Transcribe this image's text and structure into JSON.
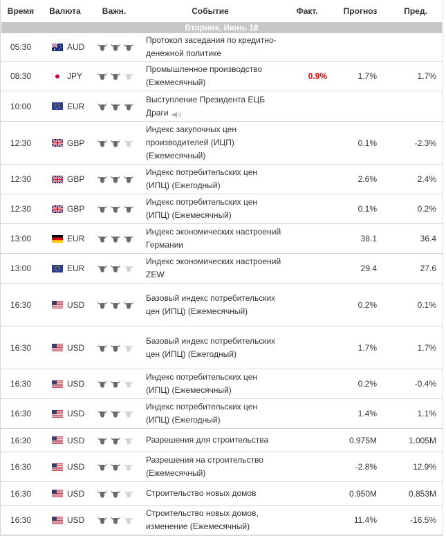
{
  "headers": {
    "time": "Время",
    "currency": "Валюта",
    "importance": "Важн.",
    "event": "Событие",
    "actual": "Факт.",
    "forecast": "Прогноз",
    "previous": "Пред."
  },
  "day_label": "Вторник, Июнь 18",
  "colors": {
    "actual_red": "#e00000",
    "day_bar": "#c8c8c8",
    "bull_dark": "#666666",
    "bull_light": "#d0d0d0"
  },
  "rows": [
    {
      "time": "05:30",
      "currency": "AUD",
      "flag": "flag-au-icon",
      "imp": 3,
      "event": "Протокол заседания по кредитно-денежной политике",
      "actual": "",
      "forecast": "",
      "previous": ""
    },
    {
      "time": "08:30",
      "currency": "JPY",
      "flag": "flag-jp-icon",
      "imp": 2,
      "event": "Промышленное производство (Ежемесячный)",
      "actual": "0.9%",
      "forecast": "1.7%",
      "previous": "1.7%"
    },
    {
      "time": "10:00",
      "currency": "EUR",
      "flag": "flag-eu-icon",
      "imp": 3,
      "event": "Выступление Президента ЕЦБ Драги",
      "actual": "",
      "forecast": "",
      "previous": "",
      "speech": true
    },
    {
      "time": "12:30",
      "currency": "GBP",
      "flag": "flag-gb-icon",
      "imp": 2,
      "event": "Индекс закупочных цен производителей (ИЦП) (Ежемесячный)",
      "actual": "",
      "forecast": "0.1%",
      "previous": "-2.3%"
    },
    {
      "time": "12:30",
      "currency": "GBP",
      "flag": "flag-gb-icon",
      "imp": 3,
      "event": "Индекс потребительских цен (ИПЦ) (Ежегодный)",
      "actual": "",
      "forecast": "2.6%",
      "previous": "2.4%"
    },
    {
      "time": "12:30",
      "currency": "GBP",
      "flag": "flag-gb-icon",
      "imp": 3,
      "event": "Индекс потребительских цен (ИПЦ) (Ежемесячный)",
      "actual": "",
      "forecast": "0.1%",
      "previous": "0.2%"
    },
    {
      "time": "13:00",
      "currency": "EUR",
      "flag": "flag-de-icon",
      "imp": 3,
      "event": "Индекс экономических настроений Германии",
      "actual": "",
      "forecast": "38.1",
      "previous": "36.4"
    },
    {
      "time": "13:00",
      "currency": "EUR",
      "flag": "flag-eu-icon",
      "imp": 2,
      "event": "Индекс экономических настроений ZEW",
      "actual": "",
      "forecast": "29.4",
      "previous": "27.6"
    },
    {
      "time": "16:30",
      "currency": "USD",
      "flag": "flag-us-icon",
      "imp": 3,
      "event": "Базовый индекс потребительских цен (ИПЦ) (Ежемесячный)",
      "actual": "",
      "forecast": "0.2%",
      "previous": "0.1%"
    },
    {
      "time": "16:30",
      "currency": "USD",
      "flag": "flag-us-icon",
      "imp": 2,
      "event": "Базовый индекс потребительских цен (ИПЦ) (Ежегодный)",
      "actual": "",
      "forecast": "1.7%",
      "previous": "1.7%"
    },
    {
      "time": "16:30",
      "currency": "USD",
      "flag": "flag-us-icon",
      "imp": 2,
      "event": "Индекс потребительских цен (ИПЦ) (Ежемесячный)",
      "actual": "",
      "forecast": "0.2%",
      "previous": "-0.4%"
    },
    {
      "time": "16:30",
      "currency": "USD",
      "flag": "flag-us-icon",
      "imp": 2,
      "event": "Индекс потребительских цен (ИПЦ) (Ежегодный)",
      "actual": "",
      "forecast": "1.4%",
      "previous": "1.1%"
    },
    {
      "time": "16:30",
      "currency": "USD",
      "flag": "flag-us-icon",
      "imp": 2,
      "event": "Разрешения для строительства",
      "actual": "",
      "forecast": "0.975M",
      "previous": "1.005M"
    },
    {
      "time": "16:30",
      "currency": "USD",
      "flag": "flag-us-icon",
      "imp": 2,
      "event": "Разрешения на строительство (Ежемесячный)",
      "actual": "",
      "forecast": "-2.8%",
      "previous": "12.9%"
    },
    {
      "time": "16:30",
      "currency": "USD",
      "flag": "flag-us-icon",
      "imp": 2,
      "event": "Строительство новых домов",
      "actual": "",
      "forecast": "0.950M",
      "previous": "0.853M"
    },
    {
      "time": "16:30",
      "currency": "USD",
      "flag": "flag-us-icon",
      "imp": 2,
      "event": "Строительство новых домов, изменение (Ежемесячный)",
      "actual": "",
      "forecast": "11.4%",
      "previous": "-16.5%"
    }
  ]
}
